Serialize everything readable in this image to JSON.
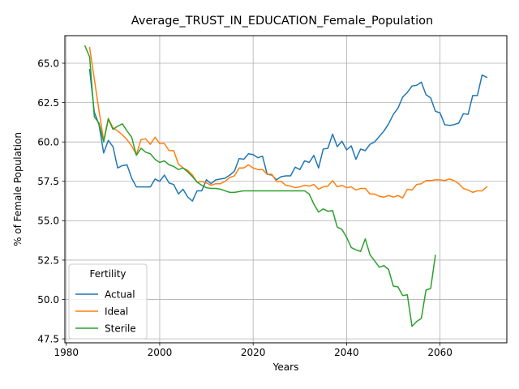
{
  "chart_data": {
    "type": "line",
    "title": "Average_TRUST_IN_EDUCATION_Female_Population",
    "xlabel": "Years",
    "ylabel": "% of Female Population",
    "xlim": [
      1979.7,
      2074.3
    ],
    "ylim": [
      47.25,
      66.75
    ],
    "xticks": [
      1980,
      2000,
      2020,
      2040,
      2060
    ],
    "yticks": [
      47.5,
      50.0,
      52.5,
      55.0,
      57.5,
      60.0,
      62.5,
      65.0
    ],
    "grid": true,
    "legend": {
      "title": "Fertility",
      "placement": "lower-left"
    },
    "series": [
      {
        "name": "Actual",
        "color": "#1f77b4",
        "x": [
          1985,
          1986,
          1987,
          1988,
          1989,
          1990,
          1991,
          1992,
          1993,
          1994,
          1995,
          1996,
          1997,
          1998,
          1999,
          2000,
          2001,
          2002,
          2003,
          2004,
          2005,
          2006,
          2007,
          2008,
          2009,
          2010,
          2011,
          2012,
          2013,
          2014,
          2015,
          2016,
          2017,
          2018,
          2019,
          2020,
          2021,
          2022,
          2023,
          2024,
          2025,
          2026,
          2027,
          2028,
          2029,
          2030,
          2031,
          2032,
          2033,
          2034,
          2035,
          2036,
          2037,
          2038,
          2039,
          2040,
          2041,
          2042,
          2043,
          2044,
          2045,
          2046,
          2047,
          2048,
          2049,
          2050,
          2051,
          2052,
          2053,
          2054,
          2055,
          2056,
          2057,
          2058,
          2059,
          2060,
          2061,
          2062,
          2063,
          2064,
          2065,
          2066,
          2067,
          2068,
          2069,
          2070
        ],
        "values": [
          64.6,
          61.9,
          61.1,
          59.3,
          60.1,
          59.7,
          58.35,
          58.5,
          58.55,
          57.7,
          57.15,
          57.15,
          57.15,
          57.15,
          57.65,
          57.5,
          57.9,
          57.4,
          57.3,
          56.7,
          57.0,
          56.5,
          56.25,
          56.9,
          56.9,
          57.6,
          57.35,
          57.6,
          57.65,
          57.7,
          57.9,
          58.15,
          58.95,
          58.9,
          59.25,
          59.2,
          59.0,
          59.1,
          57.95,
          57.9,
          57.6,
          57.8,
          57.85,
          57.85,
          58.4,
          58.25,
          58.8,
          58.7,
          59.15,
          58.35,
          59.55,
          59.6,
          60.5,
          59.7,
          60.05,
          59.5,
          59.75,
          58.9,
          59.55,
          59.45,
          59.85,
          60.0,
          60.35,
          60.7,
          61.15,
          61.75,
          62.15,
          62.85,
          63.15,
          63.55,
          63.6,
          63.8,
          63.0,
          62.8,
          61.95,
          61.85,
          61.1,
          61.05,
          61.1,
          61.2,
          61.8,
          61.75,
          62.95,
          62.95,
          64.25,
          64.1
        ]
      },
      {
        "name": "Ideal",
        "color": "#ff7f0e",
        "x": [
          1985,
          1986,
          1987,
          1988,
          1989,
          1990,
          1991,
          1992,
          1993,
          1994,
          1995,
          1996,
          1997,
          1998,
          1999,
          2000,
          2001,
          2002,
          2003,
          2004,
          2005,
          2006,
          2007,
          2008,
          2009,
          2010,
          2011,
          2012,
          2013,
          2014,
          2015,
          2016,
          2017,
          2018,
          2019,
          2020,
          2021,
          2022,
          2023,
          2024,
          2025,
          2026,
          2027,
          2028,
          2029,
          2030,
          2031,
          2032,
          2033,
          2034,
          2035,
          2036,
          2037,
          2038,
          2039,
          2040,
          2041,
          2042,
          2043,
          2044,
          2045,
          2046,
          2047,
          2048,
          2049,
          2050,
          2051,
          2052,
          2053,
          2054,
          2055,
          2056,
          2057,
          2058,
          2059,
          2060,
          2061,
          2062,
          2063,
          2064,
          2065,
          2066,
          2067,
          2068,
          2069,
          2070
        ],
        "values": [
          66.0,
          64.0,
          62.0,
          60.1,
          61.5,
          60.9,
          60.7,
          60.45,
          60.15,
          59.75,
          59.2,
          60.15,
          60.2,
          59.85,
          60.3,
          59.9,
          59.9,
          59.45,
          59.45,
          58.6,
          58.35,
          58.2,
          57.9,
          57.45,
          57.5,
          57.4,
          57.25,
          57.35,
          57.35,
          57.5,
          57.75,
          57.85,
          58.35,
          58.35,
          58.55,
          58.35,
          58.25,
          58.25,
          57.95,
          57.95,
          57.5,
          57.5,
          57.25,
          57.2,
          57.1,
          57.15,
          57.25,
          57.2,
          57.3,
          57.0,
          57.15,
          57.2,
          57.55,
          57.15,
          57.25,
          57.1,
          57.15,
          56.95,
          57.05,
          57.05,
          56.7,
          56.7,
          56.55,
          56.5,
          56.6,
          56.5,
          56.6,
          56.45,
          57.0,
          56.95,
          57.3,
          57.35,
          57.55,
          57.55,
          57.6,
          57.6,
          57.55,
          57.65,
          57.55,
          57.35,
          57.05,
          56.95,
          56.8,
          56.9,
          56.9,
          57.15
        ]
      },
      {
        "name": "Sterile",
        "color": "#2ca02c",
        "x": [
          1984,
          1985,
          1986,
          1987,
          1988,
          1989,
          1990,
          1991,
          1992,
          1993,
          1994,
          1995,
          1996,
          1997,
          1998,
          1999,
          2000,
          2001,
          2002,
          2003,
          2004,
          2005,
          2006,
          2007,
          2008,
          2009,
          2010,
          2011,
          2012,
          2013,
          2014,
          2015,
          2016,
          2017,
          2018,
          2019,
          2020,
          2021,
          2022,
          2023,
          2024,
          2025,
          2026,
          2027,
          2028,
          2029,
          2030,
          2031,
          2032,
          2033,
          2034,
          2035,
          2036,
          2037,
          2038,
          2039,
          2040,
          2041,
          2042,
          2043,
          2044,
          2045,
          2046,
          2047,
          2048,
          2049,
          2050,
          2051,
          2052,
          2053,
          2054,
          2055,
          2056,
          2057,
          2058,
          2059
        ],
        "values": [
          66.1,
          65.4,
          61.6,
          61.2,
          60.0,
          61.45,
          60.8,
          61.0,
          61.15,
          60.7,
          60.3,
          59.15,
          59.6,
          59.35,
          59.25,
          58.9,
          58.7,
          58.8,
          58.55,
          58.45,
          58.25,
          58.35,
          58.1,
          57.8,
          57.45,
          57.25,
          57.1,
          57.05,
          57.05,
          57.0,
          56.9,
          56.8,
          56.8,
          56.85,
          56.9,
          56.9,
          56.9,
          56.9,
          56.9,
          56.9,
          56.9,
          56.9,
          56.9,
          56.9,
          56.9,
          56.9,
          56.9,
          56.9,
          56.7,
          56.05,
          55.55,
          55.75,
          55.6,
          55.65,
          54.6,
          54.45,
          53.95,
          53.3,
          53.15,
          53.05,
          53.85,
          52.85,
          52.45,
          52.05,
          52.15,
          51.9,
          50.85,
          50.8,
          50.25,
          50.3,
          48.3,
          48.6,
          48.8,
          50.6,
          50.7,
          52.8
        ]
      }
    ]
  }
}
